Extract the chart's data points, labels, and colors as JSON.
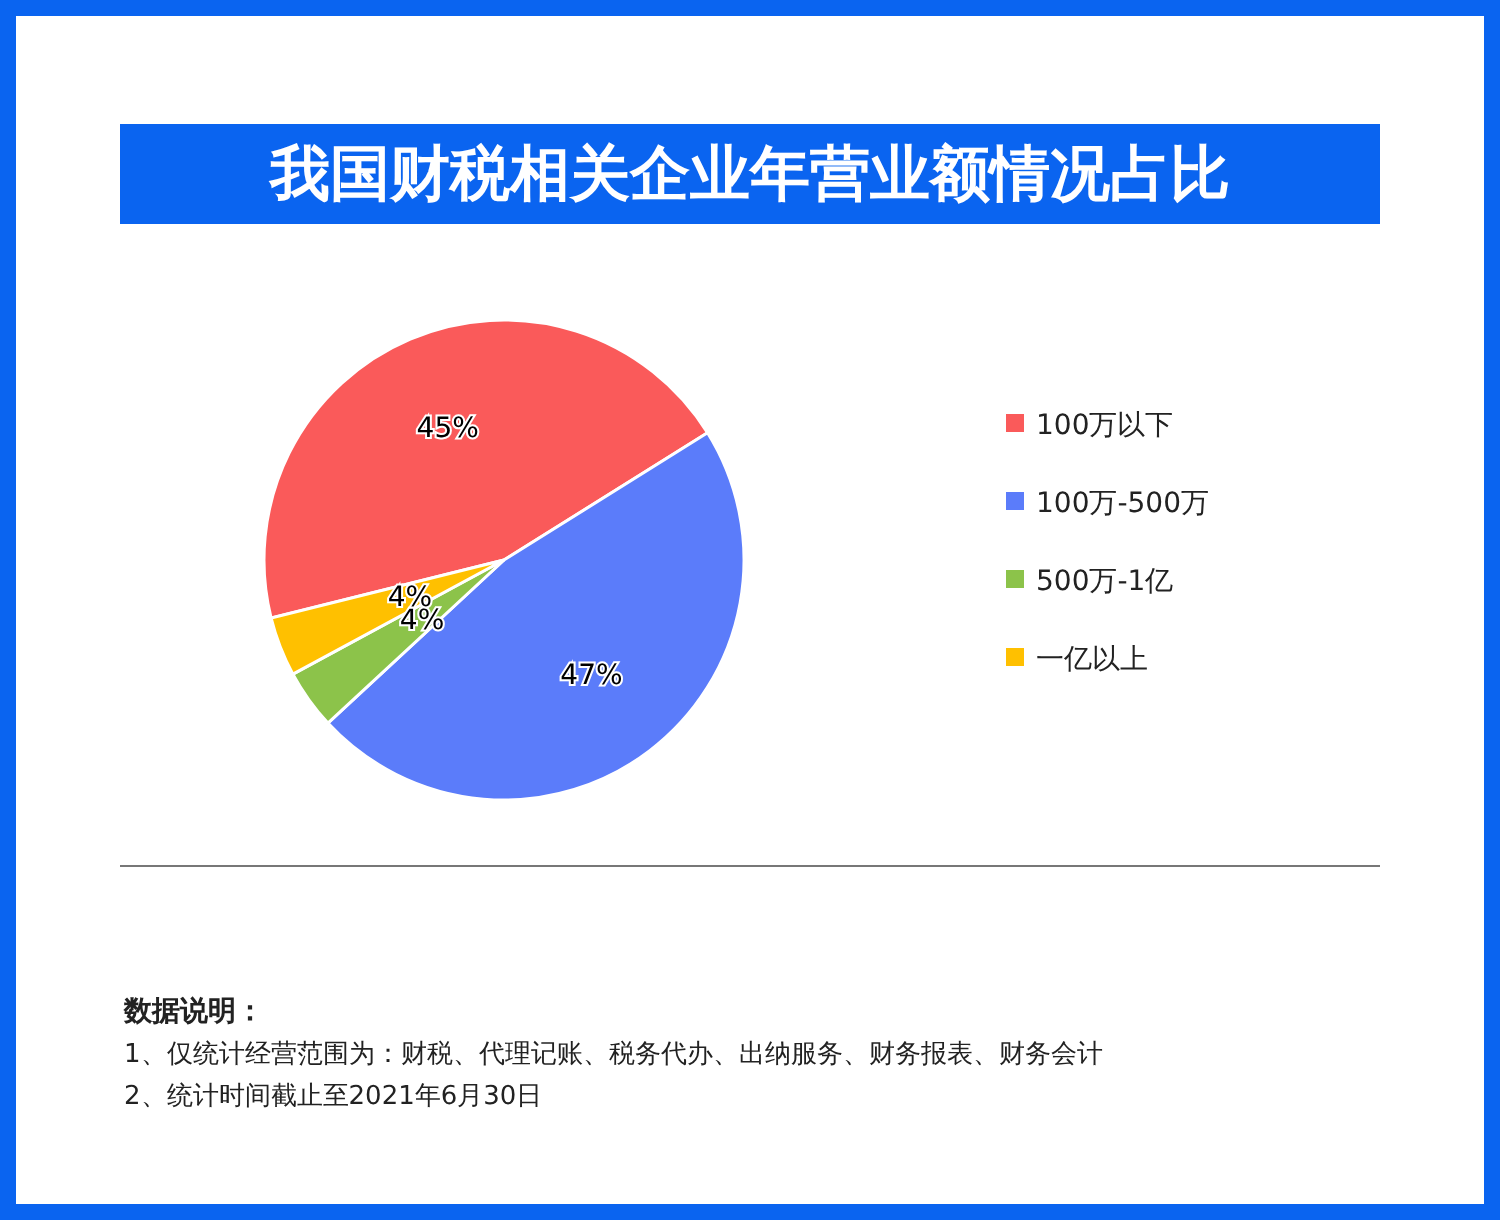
{
  "chart_data": {
    "type": "pie",
    "title": "我国财税相关企业年营业额情况占比",
    "categories": [
      "100万以下",
      "100万-500万",
      "500万-1亿",
      "一亿以上"
    ],
    "values": [
      45,
      47,
      4,
      4
    ],
    "colors": [
      "#fa5a5a",
      "#5b7cfa",
      "#8cc34a",
      "#ffc000"
    ],
    "value_labels": [
      "45%",
      "47%",
      "4%",
      "4%"
    ],
    "legend": "right",
    "annotations": [
      "数据说明：",
      "1、仅统计经营范围为：财税、代理记账、税务代办、出纳服务、财务报表、财务会计",
      "2、统计时间截止至2021年6月30日"
    ]
  }
}
